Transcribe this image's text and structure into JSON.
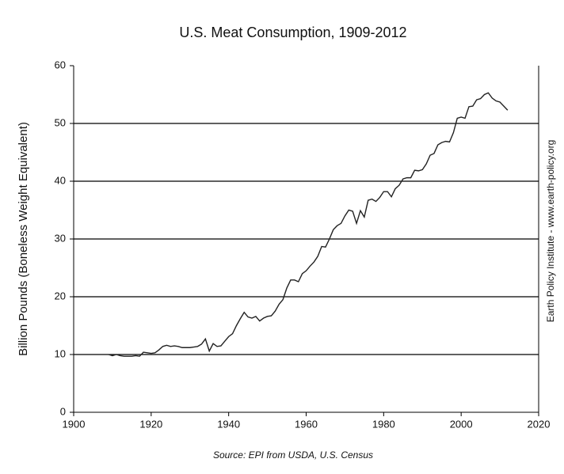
{
  "chart_data": {
    "type": "line",
    "title": "U.S. Meat Consumption, 1909-2012",
    "y_label": "Billion Pounds (Boneless Weight Equivalent)",
    "side_note": "Earth Policy Institute - www.earth-policy.org",
    "source": "Source: EPI from USDA, U.S. Census",
    "color": "#222222",
    "grid": true,
    "xlim": [
      1900,
      2020
    ],
    "xticks": [
      1900,
      1920,
      1940,
      1960,
      1980,
      2000,
      2020
    ],
    "ylim": [
      0,
      60
    ],
    "yticks": [
      0,
      10,
      20,
      30,
      40,
      50,
      60
    ],
    "x": [
      1909,
      1910,
      1911,
      1912,
      1913,
      1914,
      1915,
      1916,
      1917,
      1918,
      1919,
      1920,
      1921,
      1922,
      1923,
      1924,
      1925,
      1926,
      1927,
      1928,
      1929,
      1930,
      1931,
      1932,
      1933,
      1934,
      1935,
      1936,
      1937,
      1938,
      1939,
      1940,
      1941,
      1942,
      1943,
      1944,
      1945,
      1946,
      1947,
      1948,
      1949,
      1950,
      1951,
      1952,
      1953,
      1954,
      1955,
      1956,
      1957,
      1958,
      1959,
      1960,
      1961,
      1962,
      1963,
      1964,
      1965,
      1966,
      1967,
      1968,
      1969,
      1970,
      1971,
      1972,
      1973,
      1974,
      1975,
      1976,
      1977,
      1978,
      1979,
      1980,
      1981,
      1982,
      1983,
      1984,
      1985,
      1986,
      1987,
      1988,
      1989,
      1990,
      1991,
      1992,
      1993,
      1994,
      1995,
      1996,
      1997,
      1998,
      1999,
      2000,
      2001,
      2002,
      2003,
      2004,
      2005,
      2006,
      2007,
      2008,
      2009,
      2010,
      2011,
      2012
    ],
    "values": [
      10.0,
      9.8,
      10.0,
      9.8,
      9.7,
      9.7,
      9.7,
      9.8,
      9.7,
      10.4,
      10.3,
      10.2,
      10.3,
      10.8,
      11.4,
      11.6,
      11.4,
      11.5,
      11.4,
      11.2,
      11.2,
      11.2,
      11.3,
      11.4,
      11.8,
      12.7,
      10.6,
      11.9,
      11.4,
      11.5,
      12.3,
      13.1,
      13.6,
      15.0,
      16.2,
      17.3,
      16.5,
      16.3,
      16.6,
      15.8,
      16.3,
      16.6,
      16.7,
      17.5,
      18.7,
      19.5,
      21.5,
      22.9,
      22.9,
      22.6,
      24.0,
      24.5,
      25.3,
      26.0,
      27.0,
      28.7,
      28.6,
      30.0,
      31.6,
      32.3,
      32.7,
      34.0,
      35.0,
      34.8,
      32.7,
      34.9,
      33.8,
      36.7,
      36.9,
      36.5,
      37.2,
      38.2,
      38.2,
      37.3,
      38.7,
      39.3,
      40.4,
      40.6,
      40.6,
      41.9,
      41.8,
      42.0,
      43.0,
      44.5,
      44.8,
      46.3,
      46.7,
      46.9,
      46.8,
      48.4,
      50.9,
      51.1,
      50.9,
      52.9,
      53.0,
      54.1,
      54.3,
      55.0,
      55.3,
      54.4,
      53.9,
      53.7,
      53.0,
      52.3
    ]
  }
}
